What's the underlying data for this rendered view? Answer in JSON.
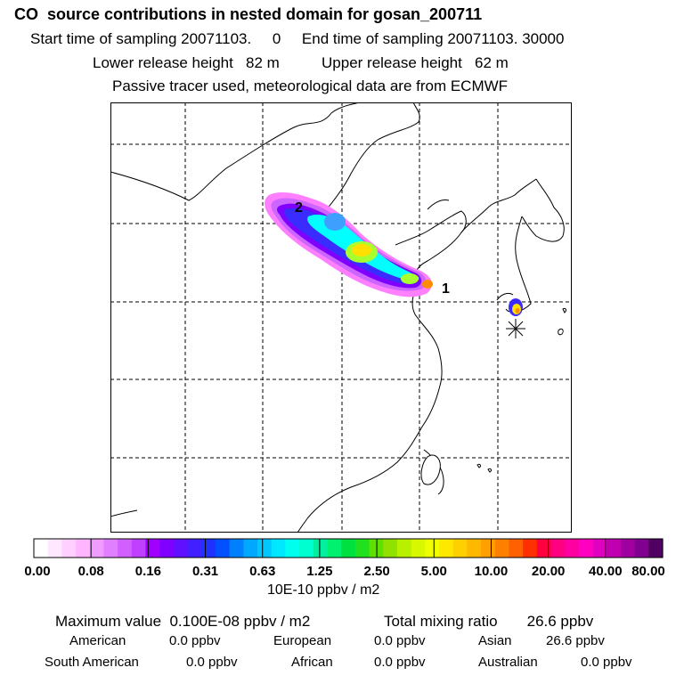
{
  "header": {
    "title": "CO  source contributions in nested domain for gosan_200711",
    "line2": "Start time of sampling 20071103.     0     End time of sampling 20071103. 30000",
    "line3": "Lower release height   82 m          Upper release height   62 m",
    "line4": "Passive tracer used, meteorological data are from ECMWF"
  },
  "map": {
    "labels": [
      "1",
      "2"
    ],
    "receptor_marker": "asterisk-marker",
    "plume_colors": [
      "#ff80ff",
      "#cc66ff",
      "#7f00ff",
      "#3a2cff",
      "#3f9fff",
      "#00ffff",
      "#2cff8a",
      "#a8ff30",
      "#ffe000",
      "#ff8c00"
    ]
  },
  "colorbar": {
    "ticks": [
      "0.00",
      "0.08",
      "0.16",
      "0.31",
      "0.63",
      "1.25",
      "2.50",
      "5.00",
      "10.00",
      "20.00",
      "40.00",
      "80.00"
    ],
    "unit": "10E-10 ppbv / m2",
    "colors": [
      "#ffffff",
      "#ffe8ff",
      "#ffd0ff",
      "#ffb5ff",
      "#f09cff",
      "#e07fff",
      "#d060ff",
      "#c040ff",
      "#a000ff",
      "#8000ff",
      "#6010ff",
      "#4020ff",
      "#2030ff",
      "#0050ff",
      "#0080ff",
      "#00a8ff",
      "#00c8ff",
      "#00e8ff",
      "#00ffee",
      "#00ffd0",
      "#00f0a0",
      "#00f070",
      "#00e040",
      "#20e020",
      "#60e000",
      "#90e000",
      "#b8f000",
      "#d8f800",
      "#f0ff00",
      "#ffe800",
      "#ffd000",
      "#ffb800",
      "#ffa000",
      "#ff8000",
      "#ff6000",
      "#ff3000",
      "#ff0040",
      "#ff0080",
      "#ff00a0",
      "#ff00c0",
      "#e000c0",
      "#c000b0",
      "#a000a0",
      "#800090",
      "#500060"
    ]
  },
  "summary": {
    "max_value": "Maximum value  0.100E-08 ppbv / m2",
    "total_mixing": "Total mixing ratio       26.6 ppbv",
    "american_label": "American",
    "american_value": "0.0 ppbv",
    "european_label": "European",
    "european_value": "0.0 ppbv",
    "asian_label": "Asian",
    "asian_value": "26.6 ppbv",
    "south_american_label": "South American",
    "south_american_value": "0.0 ppbv",
    "african_label": "African",
    "african_value": "0.0 ppbv",
    "australian_label": "Australian",
    "australian_value": "0.0 ppbv"
  }
}
